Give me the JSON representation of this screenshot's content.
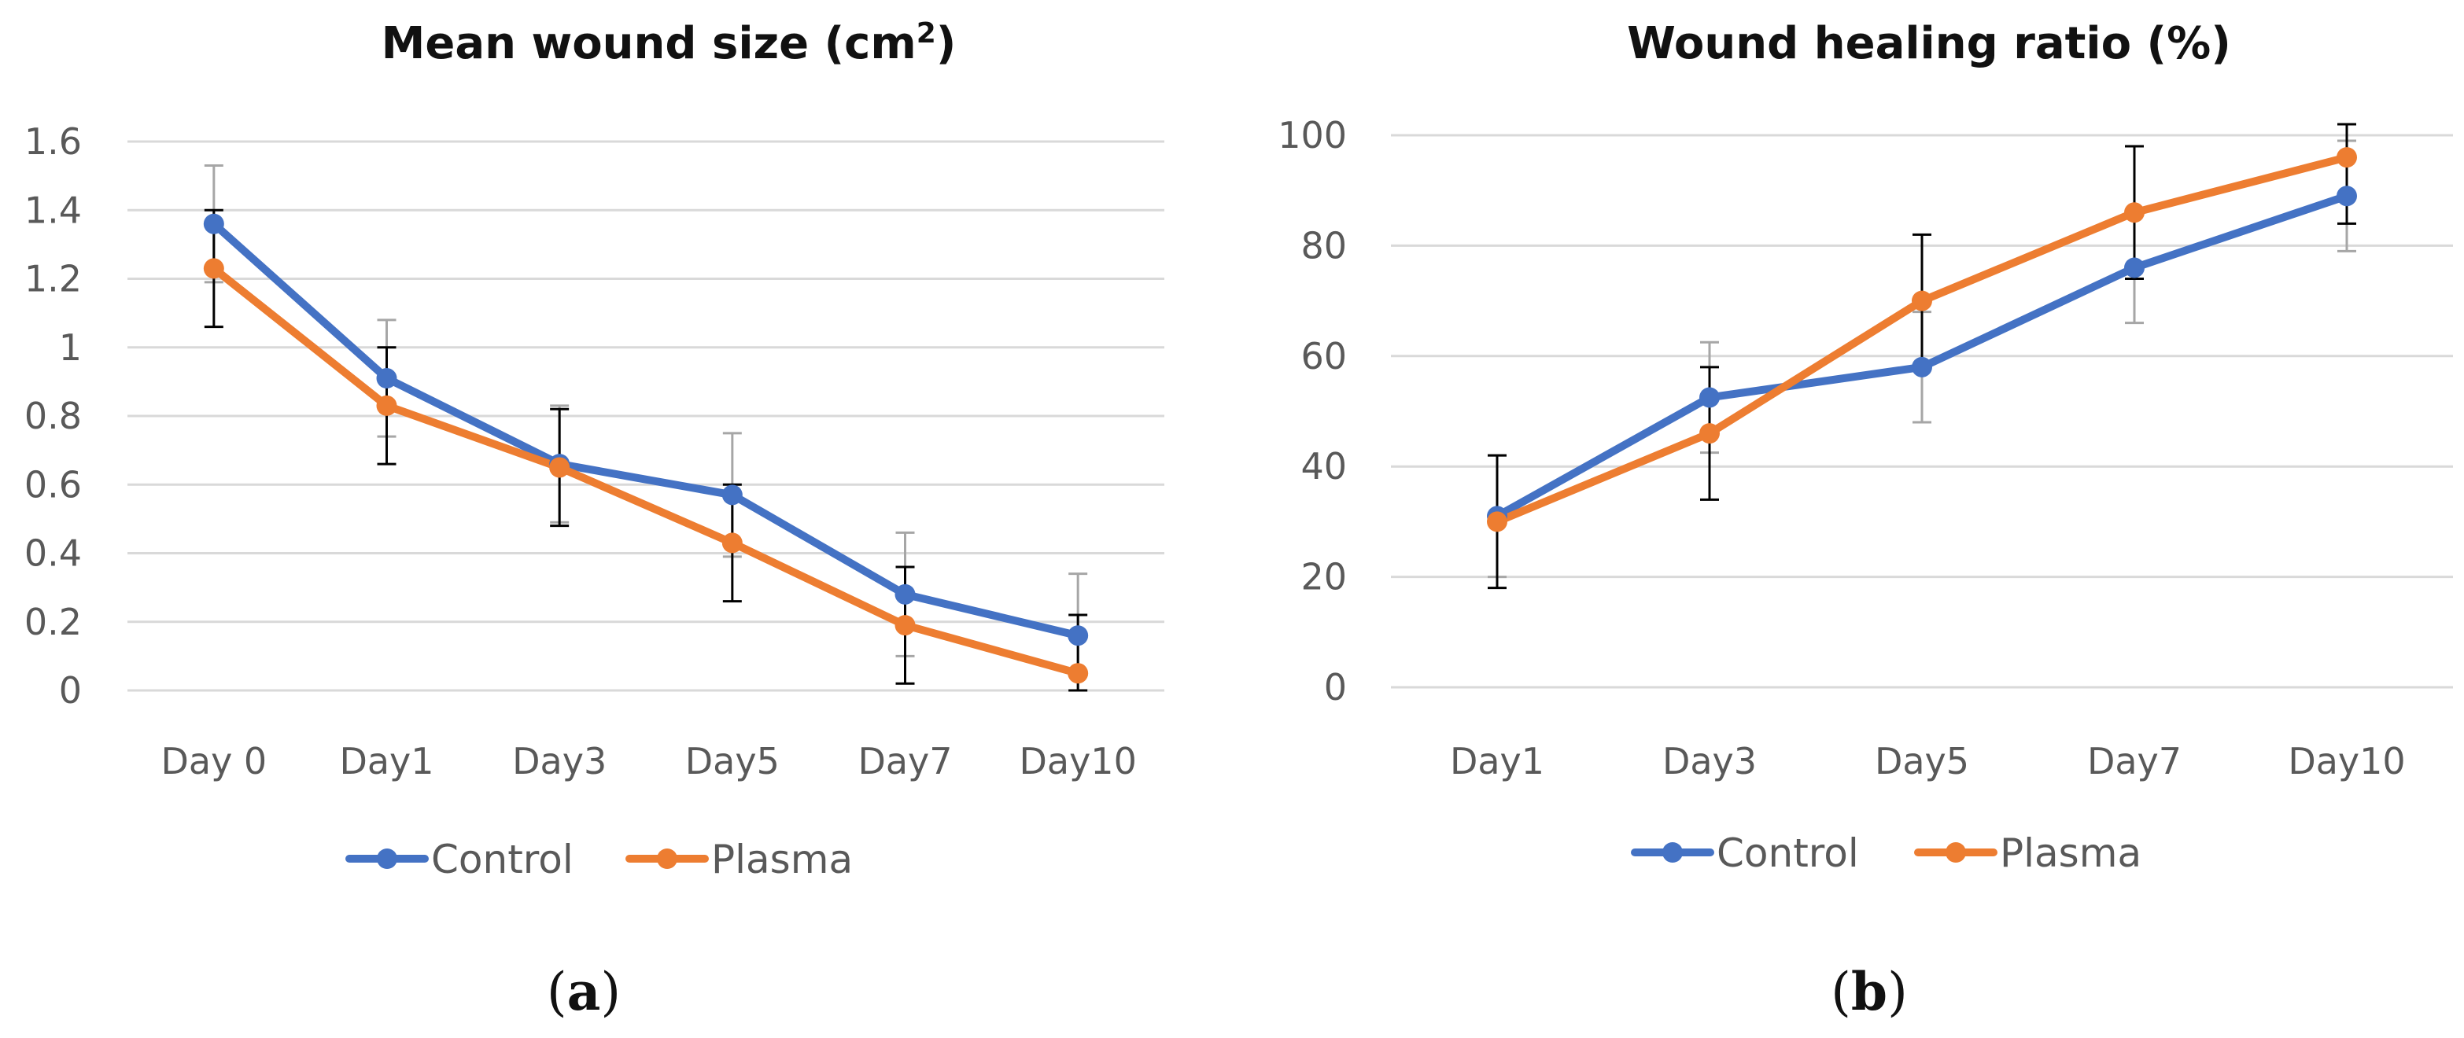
{
  "chart_data": [
    {
      "type": "line",
      "title": "Mean wound size (cm",
      "title_superscript": "2",
      "title_suffix": ")",
      "categories": [
        "Day 0",
        "Day1",
        "Day3",
        "Day5",
        "Day7",
        "Day10"
      ],
      "ylim": [
        0,
        1.6
      ],
      "yticks": [
        "0",
        "0.2",
        "0.4",
        "0.6",
        "0.8",
        "1",
        "1.2",
        "1.4",
        "1.6"
      ],
      "ytick_values": [
        0,
        0.2,
        0.4,
        0.6,
        0.8,
        1.0,
        1.2,
        1.4,
        1.6
      ],
      "grid": true,
      "legend_position": "bottom",
      "series": [
        {
          "name": "Control",
          "color": "#4472c4",
          "errorbar_color": "#a6a6a6",
          "values": [
            1.36,
            0.91,
            0.66,
            0.57,
            0.28,
            0.16
          ],
          "errors": [
            0.17,
            0.17,
            0.17,
            0.18,
            0.18,
            0.18
          ]
        },
        {
          "name": "Plasma",
          "color": "#ed7d31",
          "errorbar_color": "#000000",
          "values": [
            1.23,
            0.83,
            0.65,
            0.43,
            0.19,
            0.05
          ],
          "errors": [
            0.17,
            0.17,
            0.17,
            0.17,
            0.17,
            0.17
          ]
        }
      ],
      "caption": "a"
    },
    {
      "type": "line",
      "title": "Wound healing ratio (%)",
      "categories": [
        "Day1",
        "Day3",
        "Day5",
        "Day7",
        "Day10"
      ],
      "ylim": [
        0,
        100
      ],
      "yticks": [
        "0",
        "20",
        "40",
        "60",
        "80",
        "100"
      ],
      "ytick_values": [
        0,
        20,
        40,
        60,
        80,
        100
      ],
      "grid": true,
      "legend_position": "bottom",
      "series": [
        {
          "name": "Control",
          "color": "#4472c4",
          "errorbar_color": "#a6a6a6",
          "values": [
            31,
            52.5,
            58,
            76,
            89
          ],
          "errors": [
            11,
            10,
            10,
            10,
            10
          ]
        },
        {
          "name": "Plasma",
          "color": "#ed7d31",
          "errorbar_color": "#000000",
          "values": [
            30,
            46,
            70,
            86,
            96
          ],
          "errors": [
            12,
            12,
            12,
            12,
            12
          ]
        }
      ],
      "caption": "b"
    }
  ]
}
